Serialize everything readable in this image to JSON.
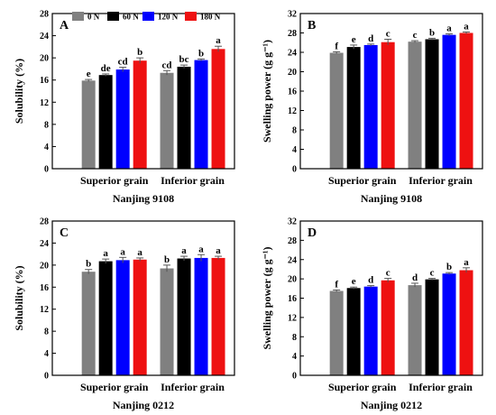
{
  "legend": {
    "entries": [
      "0 N",
      "60 N",
      "120 N",
      "180 N"
    ],
    "colors": [
      "#808080",
      "#000000",
      "#0000ff",
      "#ee1111"
    ],
    "placement": "top"
  },
  "chart_data": [
    {
      "type": "bar",
      "panel": "A",
      "ylabel": "Solubility (%)",
      "xlabel": "Nanjing 9108",
      "categories": [
        "Superior grain",
        "Inferior grain"
      ],
      "ylim": [
        0,
        28
      ],
      "yticks": [
        0,
        4,
        8,
        12,
        16,
        20,
        24,
        28
      ],
      "series": [
        {
          "name": "0 N",
          "values": [
            15.9,
            17.3
          ],
          "errors": [
            0.2,
            0.4
          ],
          "letters": [
            "e",
            "cd"
          ]
        },
        {
          "name": "60 N",
          "values": [
            16.9,
            18.4
          ],
          "errors": [
            0.2,
            0.3
          ],
          "letters": [
            "de",
            "bc"
          ]
        },
        {
          "name": "120 N",
          "values": [
            17.9,
            19.6
          ],
          "errors": [
            0.4,
            0.2
          ],
          "letters": [
            "cd",
            "b"
          ]
        },
        {
          "name": "180 N",
          "values": [
            19.5,
            21.6
          ],
          "errors": [
            0.5,
            0.5
          ],
          "letters": [
            "b",
            "a"
          ]
        }
      ]
    },
    {
      "type": "bar",
      "panel": "B",
      "ylabel": "Swelling power (g g⁻¹)",
      "xlabel": "Nanjing 9108",
      "categories": [
        "Superior grain",
        "Inferior grain"
      ],
      "ylim": [
        0,
        32
      ],
      "yticks": [
        0,
        4,
        8,
        12,
        16,
        20,
        24,
        28,
        32
      ],
      "series": [
        {
          "name": "0 N",
          "values": [
            23.9,
            26.2
          ],
          "errors": [
            0.2,
            0.2
          ],
          "letters": [
            "f",
            "c"
          ]
        },
        {
          "name": "60 N",
          "values": [
            25.1,
            26.7
          ],
          "errors": [
            0.4,
            0.2
          ],
          "letters": [
            "e",
            "b"
          ]
        },
        {
          "name": "120 N",
          "values": [
            25.5,
            27.6
          ],
          "errors": [
            0.2,
            0.2
          ],
          "letters": [
            "d",
            "a"
          ]
        },
        {
          "name": "180 N",
          "values": [
            26.1,
            28.0
          ],
          "errors": [
            0.6,
            0.2
          ],
          "letters": [
            "c",
            "a"
          ]
        }
      ]
    },
    {
      "type": "bar",
      "panel": "C",
      "ylabel": "Solubility (%)",
      "xlabel": "Nanjing 0212",
      "categories": [
        "Superior grain",
        "Inferior grain"
      ],
      "ylim": [
        0,
        28
      ],
      "yticks": [
        0,
        4,
        8,
        12,
        16,
        20,
        24,
        28
      ],
      "series": [
        {
          "name": "0 N",
          "values": [
            18.8,
            19.4
          ],
          "errors": [
            0.4,
            0.6
          ],
          "letters": [
            "b",
            "b"
          ]
        },
        {
          "name": "60 N",
          "values": [
            20.7,
            21.2
          ],
          "errors": [
            0.4,
            0.4
          ],
          "letters": [
            "a",
            "a"
          ]
        },
        {
          "name": "120 N",
          "values": [
            20.9,
            21.3
          ],
          "errors": [
            0.5,
            0.6
          ],
          "letters": [
            "a",
            "a"
          ]
        },
        {
          "name": "180 N",
          "values": [
            21.0,
            21.3
          ],
          "errors": [
            0.3,
            0.3
          ],
          "letters": [
            "a",
            "a"
          ]
        }
      ]
    },
    {
      "type": "bar",
      "panel": "D",
      "ylabel": "Swelling power (g g⁻¹)",
      "xlabel": "Nanjing 0212",
      "categories": [
        "Superior grain",
        "Inferior grain"
      ],
      "ylim": [
        0,
        32
      ],
      "yticks": [
        0,
        4,
        8,
        12,
        16,
        20,
        24,
        28,
        32
      ],
      "series": [
        {
          "name": "0 N",
          "values": [
            17.5,
            18.7
          ],
          "errors": [
            0.2,
            0.4
          ],
          "letters": [
            "f",
            "d"
          ]
        },
        {
          "name": "60 N",
          "values": [
            18.1,
            19.9
          ],
          "errors": [
            0.2,
            0.2
          ],
          "letters": [
            "e",
            "c"
          ]
        },
        {
          "name": "120 N",
          "values": [
            18.4,
            21.1
          ],
          "errors": [
            0.2,
            0.2
          ],
          "letters": [
            "d",
            "b"
          ]
        },
        {
          "name": "180 N",
          "values": [
            19.7,
            21.8
          ],
          "errors": [
            0.4,
            0.5
          ],
          "letters": [
            "c",
            "a"
          ]
        }
      ]
    }
  ]
}
